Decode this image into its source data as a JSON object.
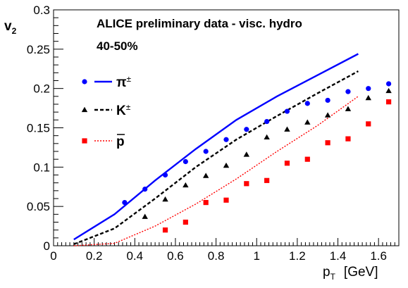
{
  "chart_data": {
    "type": "scatter",
    "annotations": [
      "ALICE preliminary data - visc. hydro",
      "40-50%"
    ],
    "ylabel_main": "v",
    "ylabel_sub": "2",
    "xlabel_main": "p",
    "xlabel_sub": "T",
    "xlabel_unit": "[GeV]",
    "xlim": [
      0,
      1.7
    ],
    "ylim": [
      0,
      0.3
    ],
    "x_ticks": [
      0,
      0.2,
      0.4,
      0.6,
      0.8,
      1,
      1.2,
      1.4,
      1.6
    ],
    "x_tick_labels": [
      "0",
      "0.2",
      "0.4",
      "0.6",
      "0.8",
      "1",
      "1.2",
      "1.4",
      "1.6"
    ],
    "y_ticks": [
      0,
      0.05,
      0.1,
      0.15,
      0.2,
      0.25,
      0.3
    ],
    "y_tick_labels": [
      "0",
      "0.05",
      "0.1",
      "0.15",
      "0.2",
      "0.25",
      "0.3"
    ],
    "grid": false,
    "legend_position": "upper-left",
    "series": [
      {
        "name": "π±",
        "base": "π",
        "sup": "±",
        "color": "#0000ff",
        "marker": "circle",
        "data_x": [
          0.35,
          0.45,
          0.55,
          0.65,
          0.75,
          0.85,
          0.95,
          1.05,
          1.15,
          1.25,
          1.35,
          1.45,
          1.55,
          1.65
        ],
        "data_y": [
          0.055,
          0.072,
          0.09,
          0.107,
          0.12,
          0.135,
          0.148,
          0.158,
          0.171,
          0.181,
          0.185,
          0.196,
          0.2,
          0.206
        ],
        "model_style": "solid",
        "model_x": [
          0.1,
          0.3,
          0.5,
          0.7,
          0.9,
          1.1,
          1.3,
          1.5
        ],
        "model_y": [
          0.008,
          0.04,
          0.083,
          0.123,
          0.16,
          0.19,
          0.217,
          0.244
        ]
      },
      {
        "name": "K±",
        "base": "K",
        "sup": "±",
        "color": "#000000",
        "marker": "triangle",
        "data_x": [
          0.45,
          0.55,
          0.65,
          0.75,
          0.85,
          0.95,
          1.05,
          1.15,
          1.25,
          1.35,
          1.45,
          1.55,
          1.65
        ],
        "data_y": [
          0.037,
          0.059,
          0.077,
          0.089,
          0.102,
          0.116,
          0.138,
          0.148,
          0.157,
          0.166,
          0.174,
          0.188,
          0.197
        ],
        "model_style": "dashed",
        "model_x": [
          0.1,
          0.3,
          0.5,
          0.7,
          0.9,
          1.1,
          1.3,
          1.5
        ],
        "model_y": [
          0.002,
          0.022,
          0.06,
          0.1,
          0.135,
          0.165,
          0.194,
          0.222
        ]
      },
      {
        "name": "p̄",
        "base": "p",
        "overbar": true,
        "color": "#ff0000",
        "marker": "square",
        "data_x": [
          0.55,
          0.65,
          0.75,
          0.85,
          0.95,
          1.05,
          1.15,
          1.25,
          1.35,
          1.45,
          1.55,
          1.65
        ],
        "data_y": [
          0.02,
          0.03,
          0.055,
          0.058,
          0.079,
          0.083,
          0.105,
          0.11,
          0.131,
          0.136,
          0.155,
          0.183
        ],
        "model_style": "dotted",
        "model_x": [
          0.1,
          0.3,
          0.5,
          0.7,
          0.9,
          1.1,
          1.3,
          1.5
        ],
        "model_y": [
          0.0,
          0.003,
          0.025,
          0.053,
          0.085,
          0.12,
          0.153,
          0.19
        ]
      }
    ]
  }
}
